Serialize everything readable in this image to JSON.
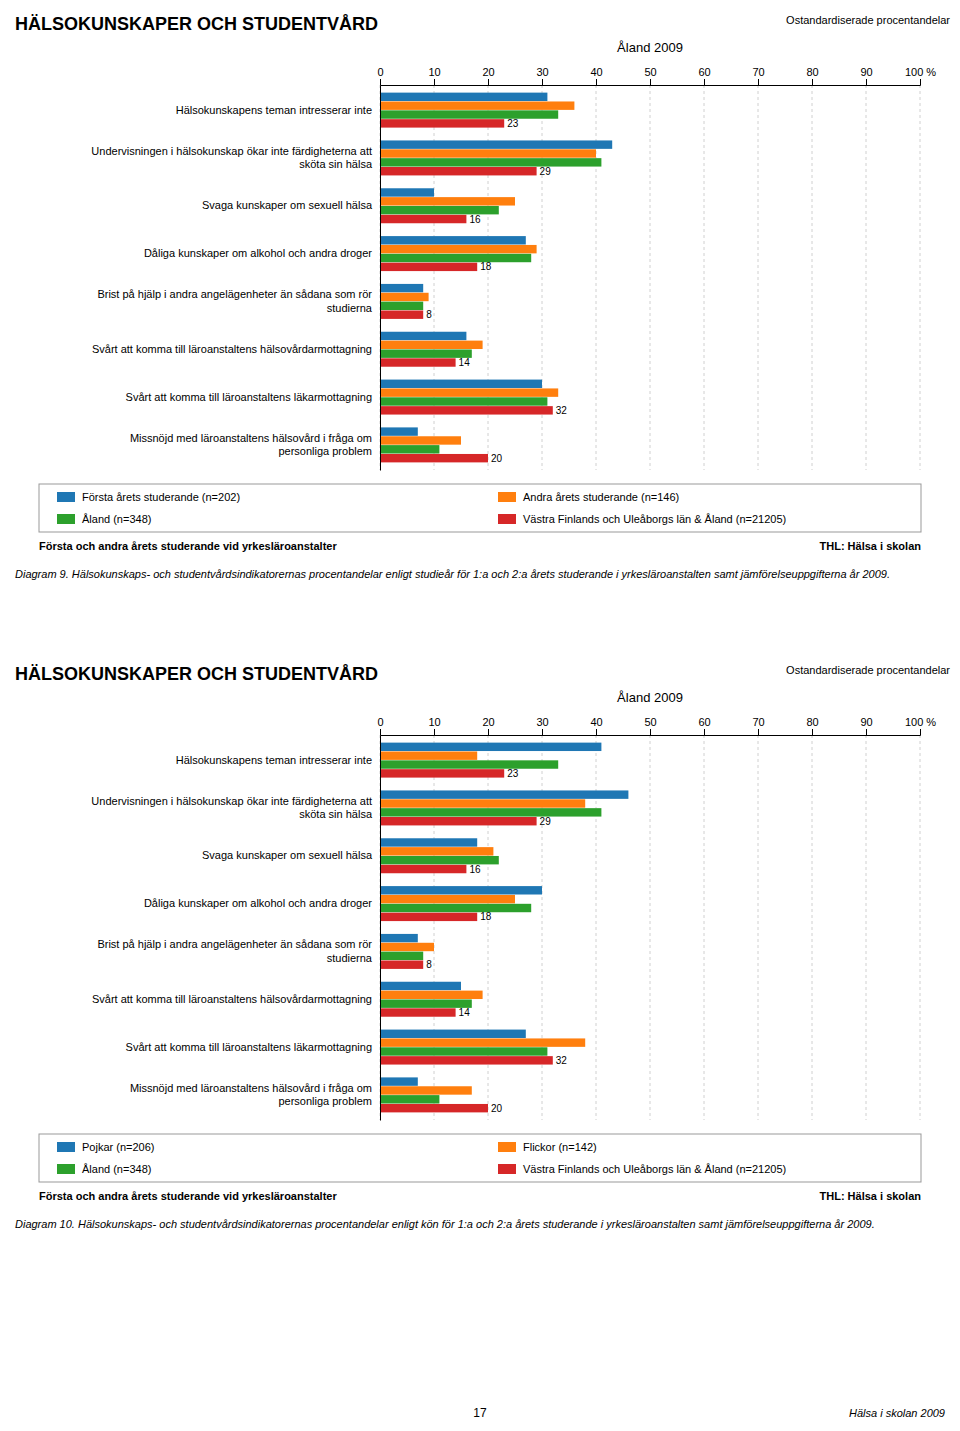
{
  "chart_data": [
    {
      "type": "bar",
      "orientation": "horizontal",
      "title": "HÄLSOKUNSKAPER OCH STUDENTVÅRD",
      "subtitle": "Åland 2009",
      "annotations": [
        "Ostandardiserade procentandelar",
        "Första och andra årets studerande vid yrkesläroanstalter",
        "THL: Hälsa i skolan",
        "Diagram 9. Hälsokunskaps- och studentvårdsindikatorernas procentandelar enligt studieår för 1:a och 2:a årets studerande i yrkesläroanstalten samt jämförelseuppgifterna år 2009."
      ],
      "categories": [
        "Hälsokunskapens teman intresserar inte",
        "Undervisningen i hälsokunskap ökar inte färdigheterna att\nsköta sin hälsa",
        "Svaga kunskaper om sexuell hälsa",
        "Dåliga kunskaper om alkohol och andra droger",
        "Brist på hjälp i andra angelägenheter än sådana som rör\nstudierna",
        "Svårt att komma till läroanstaltens hälsovårdarmottagning",
        "Svårt att komma till läroanstaltens läkarmottagning",
        "Missnöjd med läroanstaltens hälsovård i fråga om\npersonliga problem"
      ],
      "series": [
        {
          "name": "Första årets studerande  (n=202)",
          "values": [
            31,
            43,
            10,
            27,
            8,
            16,
            30,
            7
          ]
        },
        {
          "name": "Andra årets studerande  (n=146)",
          "values": [
            36,
            40,
            25,
            29,
            9,
            19,
            33,
            15
          ]
        },
        {
          "name": "Åland (n=348)",
          "values": [
            33,
            41,
            22,
            28,
            8,
            17,
            31,
            11
          ]
        },
        {
          "name": "Västra Finlands och Uleåborgs län & Åland (n=21205)",
          "values": [
            23,
            29,
            16,
            18,
            8,
            14,
            32,
            20
          ],
          "data_labels": true
        }
      ],
      "xlim": [
        0,
        100
      ],
      "xticks": [
        0,
        10,
        20,
        30,
        40,
        50,
        60,
        70,
        80,
        90,
        {
          "value": 100,
          "label": "100 %"
        }
      ],
      "grid": true,
      "legend": "bottom"
    },
    {
      "type": "bar",
      "orientation": "horizontal",
      "title": "HÄLSOKUNSKAPER OCH STUDENTVÅRD",
      "subtitle": "Åland 2009",
      "annotations": [
        "Ostandardiserade procentandelar",
        "Första och andra årets studerande vid yrkesläroanstalter",
        "THL: Hälsa i skolan",
        "Diagram 10. Hälsokunskaps- och studentvårdsindikatorernas procentandelar enligt kön för 1:a och 2:a årets studerande i yrkesläroanstalten samt jämförelseuppgifterna år 2009."
      ],
      "categories": [
        "Hälsokunskapens teman intresserar inte",
        "Undervisningen i hälsokunskap ökar inte färdigheterna att\nsköta sin hälsa",
        "Svaga kunskaper om sexuell hälsa",
        "Dåliga kunskaper om alkohol och andra droger",
        "Brist på hjälp i andra angelägenheter än sådana som rör\nstudierna",
        "Svårt att komma till läroanstaltens hälsovårdarmottagning",
        "Svårt att komma till läroanstaltens läkarmottagning",
        "Missnöjd med läroanstaltens hälsovård i fråga om\npersonliga problem"
      ],
      "series": [
        {
          "name": "Pojkar (n=206)",
          "values": [
            41,
            46,
            18,
            30,
            7,
            15,
            27,
            7
          ]
        },
        {
          "name": "Flickor (n=142)",
          "values": [
            18,
            38,
            21,
            25,
            10,
            19,
            38,
            17
          ]
        },
        {
          "name": "Åland (n=348)",
          "values": [
            33,
            41,
            22,
            28,
            8,
            17,
            31,
            11
          ]
        },
        {
          "name": "Västra Finlands och Uleåborgs län & Åland (n=21205)",
          "values": [
            23,
            29,
            16,
            18,
            8,
            14,
            32,
            20
          ],
          "data_labels": true
        }
      ],
      "xlim": [
        0,
        100
      ],
      "xticks": [
        0,
        10,
        20,
        30,
        40,
        50,
        60,
        70,
        80,
        90,
        {
          "value": 100,
          "label": "100 %"
        }
      ],
      "grid": true,
      "legend": "bottom"
    }
  ],
  "annotations": [
    "17",
    "Hälsa i skolan 2009"
  ]
}
